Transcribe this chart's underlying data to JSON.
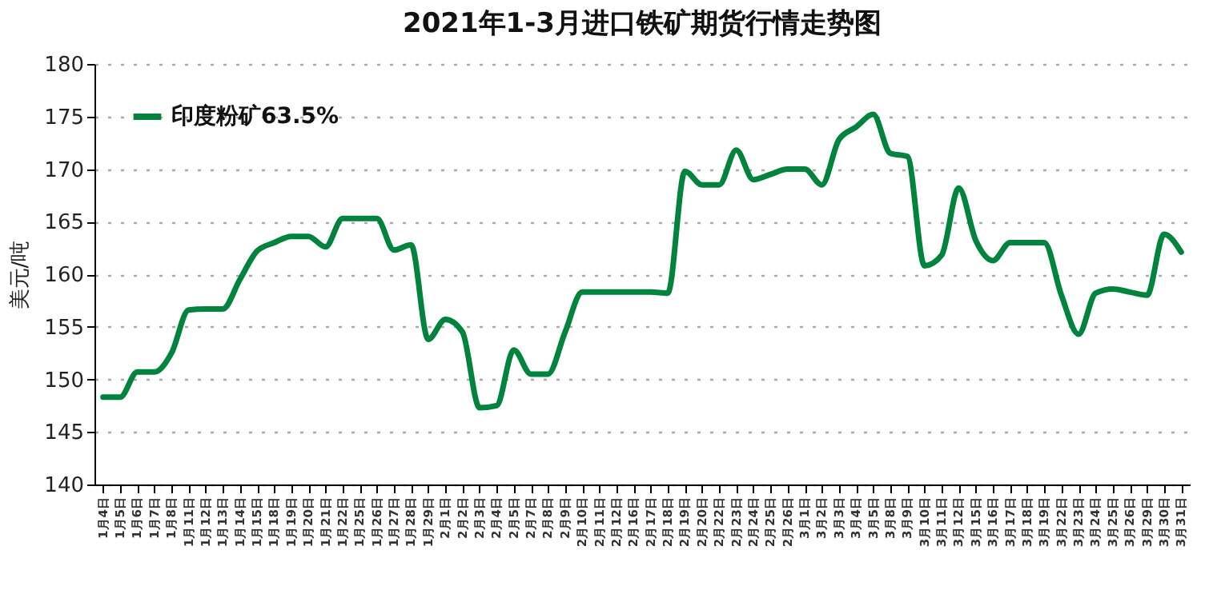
{
  "chart_data": {
    "type": "line",
    "title": "2021年1-3月进口铁矿期货行情走势图",
    "ylabel": "美元/吨",
    "categories": [
      "1月4日",
      "1月5日",
      "1月6日",
      "1月7日",
      "1月8日",
      "1月11日",
      "1月12日",
      "1月13日",
      "1月14日",
      "1月15日",
      "1月18日",
      "1月19日",
      "1月20日",
      "1月21日",
      "1月22日",
      "1月25日",
      "1月26日",
      "1月27日",
      "1月28日",
      "1月29日",
      "2月1日",
      "2月2日",
      "2月3日",
      "2月4日",
      "2月5日",
      "2月7日",
      "2月8日",
      "2月9日",
      "2月10日",
      "2月11日",
      "2月12日",
      "2月16日",
      "2月17日",
      "2月18日",
      "2月19日",
      "2月20日",
      "2月22日",
      "2月23日",
      "2月24日",
      "2月25日",
      "2月26日",
      "3月1日",
      "3月2日",
      "3月3日",
      "3月4日",
      "3月5日",
      "3月8日",
      "3月9日",
      "3月10日",
      "3月11日",
      "3月12日",
      "3月15日",
      "3月16日",
      "3月17日",
      "3月18日",
      "3月19日",
      "3月22日",
      "3月23日",
      "3月24日",
      "3月25日",
      "3月26日",
      "3月29日",
      "3月30日",
      "3月31日"
    ],
    "series": [
      {
        "name": "印度粉矿63.5%",
        "color": "#00843d",
        "values": [
          148.3,
          148.3,
          150.7,
          150.7,
          152.5,
          156.6,
          156.7,
          156.7,
          159.5,
          162.2,
          163,
          163.6,
          163.6,
          162.6,
          165.3,
          165.3,
          165.3,
          162.3,
          162.8,
          153.8,
          155.7,
          154.5,
          147.3,
          147.5,
          152.8,
          150.5,
          150.5,
          154.5,
          158.3,
          158.3,
          158.3,
          158.3,
          158.3,
          158.2,
          169.8,
          168.5,
          168.5,
          171.8,
          169,
          169.5,
          170,
          170,
          168.5,
          172.8,
          174,
          175.2,
          171.5,
          171.2,
          160.8,
          161.8,
          168.2,
          163.2,
          161.3,
          163,
          163,
          163,
          158,
          154.3,
          158.2,
          158.6,
          158.3,
          158,
          163.8,
          162.1
        ]
      }
    ],
    "ylim": [
      140,
      180
    ],
    "yticks": [
      140,
      145,
      150,
      155,
      160,
      165,
      170,
      175,
      180
    ],
    "grid": "y",
    "legend": "top left",
    "marker": "none",
    "line_style": "solid"
  }
}
